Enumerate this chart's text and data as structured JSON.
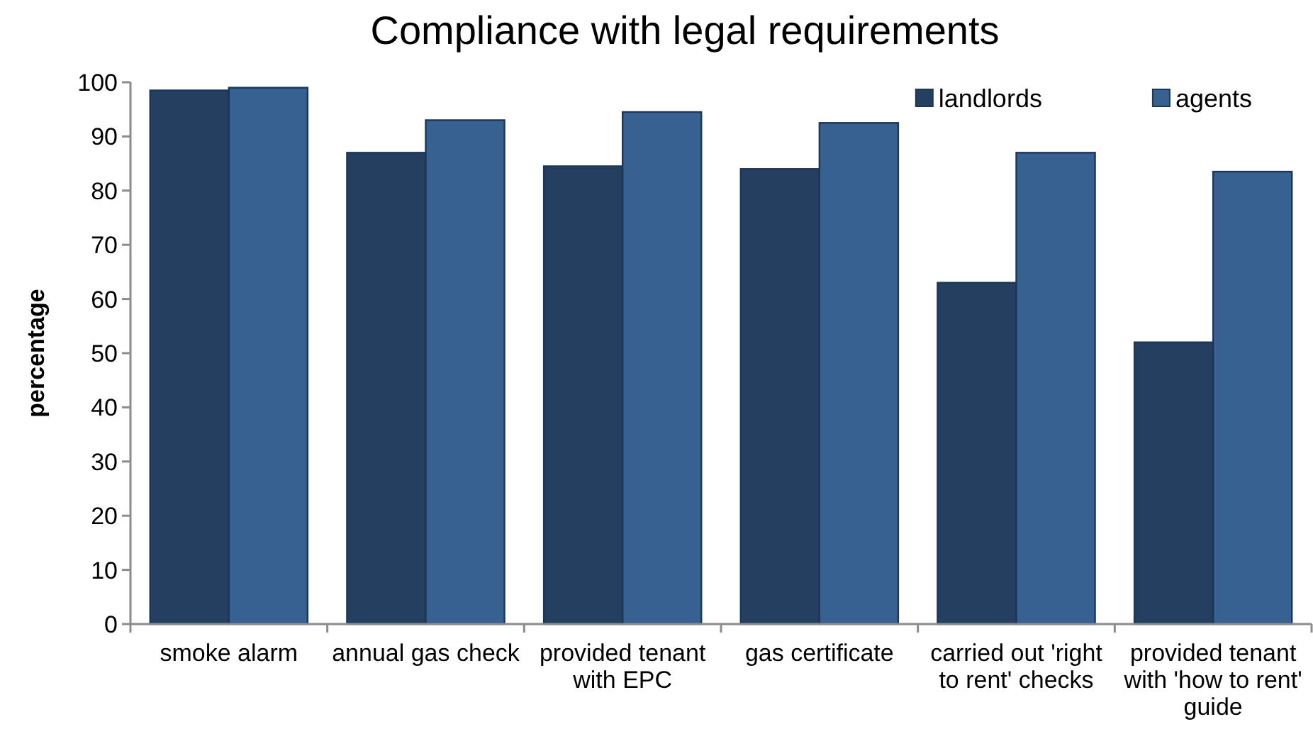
{
  "chart_data": {
    "type": "bar",
    "title": "Compliance with legal requirements",
    "ylabel": "percentage",
    "categories": [
      "smoke alarm",
      "annual gas check",
      "provided tenant with EPC",
      "gas certificate",
      "carried out 'right to rent' checks",
      "provided tenant with 'how to rent' guide"
    ],
    "series": [
      {
        "name": "landlords",
        "color": "#253f60",
        "values": [
          98.5,
          87,
          84.5,
          84,
          63,
          52
        ]
      },
      {
        "name": "agents",
        "color": "#366191",
        "values": [
          99,
          93,
          94.5,
          92.5,
          87,
          83.5
        ]
      }
    ],
    "ylim": [
      0,
      100
    ],
    "yticks": [
      0,
      10,
      20,
      30,
      40,
      50,
      60,
      70,
      80,
      90,
      100
    ],
    "grid": false,
    "legend": "top right"
  }
}
